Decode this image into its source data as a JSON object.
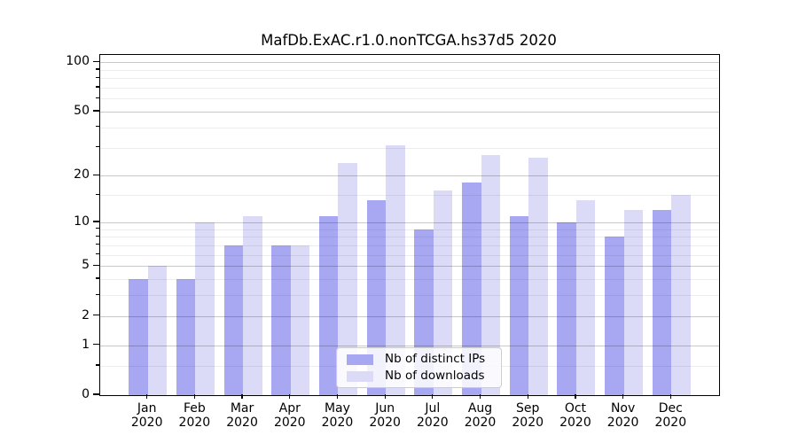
{
  "chart_data": {
    "type": "bar",
    "title": "MafDb.ExAC.r1.0.nonTCGA.hs37d5 2020",
    "categories": [
      "Jan",
      "Feb",
      "Mar",
      "Apr",
      "May",
      "Jun",
      "Jul",
      "Aug",
      "Sep",
      "Oct",
      "Nov",
      "Dec"
    ],
    "x_tick_year": "2020",
    "series": [
      {
        "key": "ips",
        "name": "Nb of distinct IPs",
        "color": "#a8a8f2",
        "values": [
          4,
          4,
          7,
          7,
          11,
          14,
          9,
          18,
          11,
          10,
          8,
          12
        ]
      },
      {
        "key": "downloads",
        "name": "Nb of downloads",
        "color": "#dbdbf8",
        "values": [
          5,
          10,
          11,
          7,
          24,
          31,
          16,
          27,
          26,
          14,
          12,
          15
        ]
      }
    ],
    "yscale": "log1p",
    "ylim": [
      0,
      111
    ],
    "y_major_ticks": [
      0,
      1,
      2,
      5,
      10,
      20,
      50,
      100
    ],
    "y_minor_ticks": [
      0.5,
      3,
      4,
      6,
      7,
      8,
      9,
      15,
      30,
      40,
      60,
      70,
      80,
      90
    ],
    "grid": true,
    "grid_major_color": "rgba(0,0,0,0.21)",
    "grid_minor_color": "rgba(0,0,0,0.07)",
    "axis_color": "#000000",
    "legend_position": "lower center"
  }
}
